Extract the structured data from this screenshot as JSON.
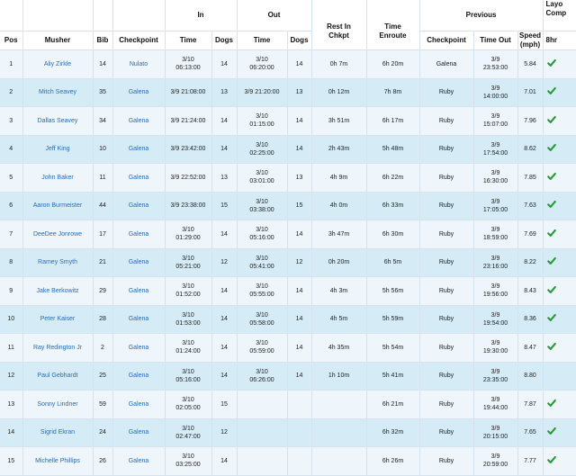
{
  "headers": {
    "pos": "Pos",
    "musher": "Musher",
    "bib": "Bib",
    "checkpoint": "Checkpoint",
    "in_group": "In",
    "out_group": "Out",
    "rest_line1": "Rest In",
    "rest_line2": "Chkpt",
    "enroute_line1": "Time",
    "enroute_line2": "Enroute",
    "previous_group": "Previous",
    "layover_line1": "Layo",
    "layover_line2": "Comp",
    "in_time": "Time",
    "in_dogs": "Dogs",
    "out_time": "Time",
    "out_dogs": "Dogs",
    "prev_checkpoint": "Checkpoint",
    "prev_time_out": "Time Out",
    "speed_line1": "Speed",
    "speed_line2": "(mph)",
    "eight_hr": "8hr"
  },
  "colors": {
    "link": "#2b6db5",
    "row_odd": "#eef5fb",
    "row_even": "#d5ecf7",
    "check": "#2a9a3a"
  },
  "rows": [
    {
      "pos": "1",
      "musher": "Aliy Zirkle",
      "bib": "14",
      "checkpoint": "Nulato",
      "in_time_1": "3/10",
      "in_time_2": "06:13:00",
      "in_dogs": "14",
      "out_time_1": "3/10",
      "out_time_2": "06:20:00",
      "out_dogs": "14",
      "rest": "0h 7m",
      "enroute": "6h 20m",
      "prev_checkpoint": "Galena",
      "prev_time_1": "3/9",
      "prev_time_2": "23:53:00",
      "speed": "5.84",
      "check": true
    },
    {
      "pos": "2",
      "musher": "Mitch Seavey",
      "bib": "35",
      "checkpoint": "Galena",
      "in_time_1": "3/9 21:08:00",
      "in_time_2": "",
      "in_dogs": "13",
      "out_time_1": "3/9 21:20:00",
      "out_time_2": "",
      "out_dogs": "13",
      "rest": "0h 12m",
      "enroute": "7h 8m",
      "prev_checkpoint": "Ruby",
      "prev_time_1": "3/9",
      "prev_time_2": "14:00:00",
      "speed": "7.01",
      "check": true
    },
    {
      "pos": "3",
      "musher": "Dallas Seavey",
      "bib": "34",
      "checkpoint": "Galena",
      "in_time_1": "3/9 21:24:00",
      "in_time_2": "",
      "in_dogs": "14",
      "out_time_1": "3/10",
      "out_time_2": "01:15:00",
      "out_dogs": "14",
      "rest": "3h 51m",
      "enroute": "6h 17m",
      "prev_checkpoint": "Ruby",
      "prev_time_1": "3/9",
      "prev_time_2": "15:07:00",
      "speed": "7.96",
      "check": true
    },
    {
      "pos": "4",
      "musher": "Jeff King",
      "bib": "10",
      "checkpoint": "Galena",
      "in_time_1": "3/9 23:42:00",
      "in_time_2": "",
      "in_dogs": "14",
      "out_time_1": "3/10",
      "out_time_2": "02:25:00",
      "out_dogs": "14",
      "rest": "2h 43m",
      "enroute": "5h 48m",
      "prev_checkpoint": "Ruby",
      "prev_time_1": "3/9",
      "prev_time_2": "17:54:00",
      "speed": "8.62",
      "check": true
    },
    {
      "pos": "5",
      "musher": "John Baker",
      "bib": "11",
      "checkpoint": "Galena",
      "in_time_1": "3/9 22:52:00",
      "in_time_2": "",
      "in_dogs": "13",
      "out_time_1": "3/10",
      "out_time_2": "03:01:00",
      "out_dogs": "13",
      "rest": "4h 9m",
      "enroute": "6h 22m",
      "prev_checkpoint": "Ruby",
      "prev_time_1": "3/9",
      "prev_time_2": "16:30:00",
      "speed": "7.85",
      "check": true
    },
    {
      "pos": "6",
      "musher": "Aaron Burmeister",
      "bib": "44",
      "checkpoint": "Galena",
      "in_time_1": "3/9 23:38:00",
      "in_time_2": "",
      "in_dogs": "15",
      "out_time_1": "3/10",
      "out_time_2": "03:38:00",
      "out_dogs": "15",
      "rest": "4h 0m",
      "enroute": "6h 33m",
      "prev_checkpoint": "Ruby",
      "prev_time_1": "3/9",
      "prev_time_2": "17:05:00",
      "speed": "7.63",
      "check": true
    },
    {
      "pos": "7",
      "musher": "DeeDee Jonrowe",
      "bib": "17",
      "checkpoint": "Galena",
      "in_time_1": "3/10",
      "in_time_2": "01:29:00",
      "in_dogs": "14",
      "out_time_1": "3/10",
      "out_time_2": "05:16:00",
      "out_dogs": "14",
      "rest": "3h 47m",
      "enroute": "6h 30m",
      "prev_checkpoint": "Ruby",
      "prev_time_1": "3/9",
      "prev_time_2": "18:59:00",
      "speed": "7.69",
      "check": true
    },
    {
      "pos": "8",
      "musher": "Ramey Smyth",
      "bib": "21",
      "checkpoint": "Galena",
      "in_time_1": "3/10",
      "in_time_2": "05:21:00",
      "in_dogs": "12",
      "out_time_1": "3/10",
      "out_time_2": "05:41:00",
      "out_dogs": "12",
      "rest": "0h 20m",
      "enroute": "6h 5m",
      "prev_checkpoint": "Ruby",
      "prev_time_1": "3/9",
      "prev_time_2": "23:16:00",
      "speed": "8.22",
      "check": true
    },
    {
      "pos": "9",
      "musher": "Jake Berkowitz",
      "bib": "29",
      "checkpoint": "Galena",
      "in_time_1": "3/10",
      "in_time_2": "01:52:00",
      "in_dogs": "14",
      "out_time_1": "3/10",
      "out_time_2": "05:55:00",
      "out_dogs": "14",
      "rest": "4h 3m",
      "enroute": "5h 56m",
      "prev_checkpoint": "Ruby",
      "prev_time_1": "3/9",
      "prev_time_2": "19:56:00",
      "speed": "8.43",
      "check": true
    },
    {
      "pos": "10",
      "musher": "Peter Kaiser",
      "bib": "28",
      "checkpoint": "Galena",
      "in_time_1": "3/10",
      "in_time_2": "01:53:00",
      "in_dogs": "14",
      "out_time_1": "3/10",
      "out_time_2": "05:58:00",
      "out_dogs": "14",
      "rest": "4h 5m",
      "enroute": "5h 59m",
      "prev_checkpoint": "Ruby",
      "prev_time_1": "3/9",
      "prev_time_2": "19:54:00",
      "speed": "8.36",
      "check": true
    },
    {
      "pos": "11",
      "musher": "Ray Redington Jr",
      "bib": "2",
      "checkpoint": "Galena",
      "in_time_1": "3/10",
      "in_time_2": "01:24:00",
      "in_dogs": "14",
      "out_time_1": "3/10",
      "out_time_2": "05:59:00",
      "out_dogs": "14",
      "rest": "4h 35m",
      "enroute": "5h 54m",
      "prev_checkpoint": "Ruby",
      "prev_time_1": "3/9",
      "prev_time_2": "19:30:00",
      "speed": "8.47",
      "check": true
    },
    {
      "pos": "12",
      "musher": "Paul Gebhardt",
      "bib": "25",
      "checkpoint": "Galena",
      "in_time_1": "3/10",
      "in_time_2": "05:16:00",
      "in_dogs": "14",
      "out_time_1": "3/10",
      "out_time_2": "06:26:00",
      "out_dogs": "14",
      "rest": "1h 10m",
      "enroute": "5h 41m",
      "prev_checkpoint": "Ruby",
      "prev_time_1": "3/9",
      "prev_time_2": "23:35:00",
      "speed": "8.80",
      "check": false
    },
    {
      "pos": "13",
      "musher": "Sonny Lindner",
      "bib": "59",
      "checkpoint": "Galena",
      "in_time_1": "3/10",
      "in_time_2": "02:05:00",
      "in_dogs": "15",
      "out_time_1": "",
      "out_time_2": "",
      "out_dogs": "",
      "rest": "",
      "enroute": "6h 21m",
      "prev_checkpoint": "Ruby",
      "prev_time_1": "3/9",
      "prev_time_2": "19:44:00",
      "speed": "7.87",
      "check": true
    },
    {
      "pos": "14",
      "musher": "Sigrid Ekran",
      "bib": "24",
      "checkpoint": "Galena",
      "in_time_1": "3/10",
      "in_time_2": "02:47:00",
      "in_dogs": "12",
      "out_time_1": "",
      "out_time_2": "",
      "out_dogs": "",
      "rest": "",
      "enroute": "6h 32m",
      "prev_checkpoint": "Ruby",
      "prev_time_1": "3/9",
      "prev_time_2": "20:15:00",
      "speed": "7.65",
      "check": true
    },
    {
      "pos": "15",
      "musher": "Michelle Phillips",
      "bib": "26",
      "checkpoint": "Galena",
      "in_time_1": "3/10",
      "in_time_2": "03:25:00",
      "in_dogs": "14",
      "out_time_1": "",
      "out_time_2": "",
      "out_dogs": "",
      "rest": "",
      "enroute": "6h 26m",
      "prev_checkpoint": "Ruby",
      "prev_time_1": "3/9",
      "prev_time_2": "20:59:00",
      "speed": "7.77",
      "check": true
    }
  ]
}
